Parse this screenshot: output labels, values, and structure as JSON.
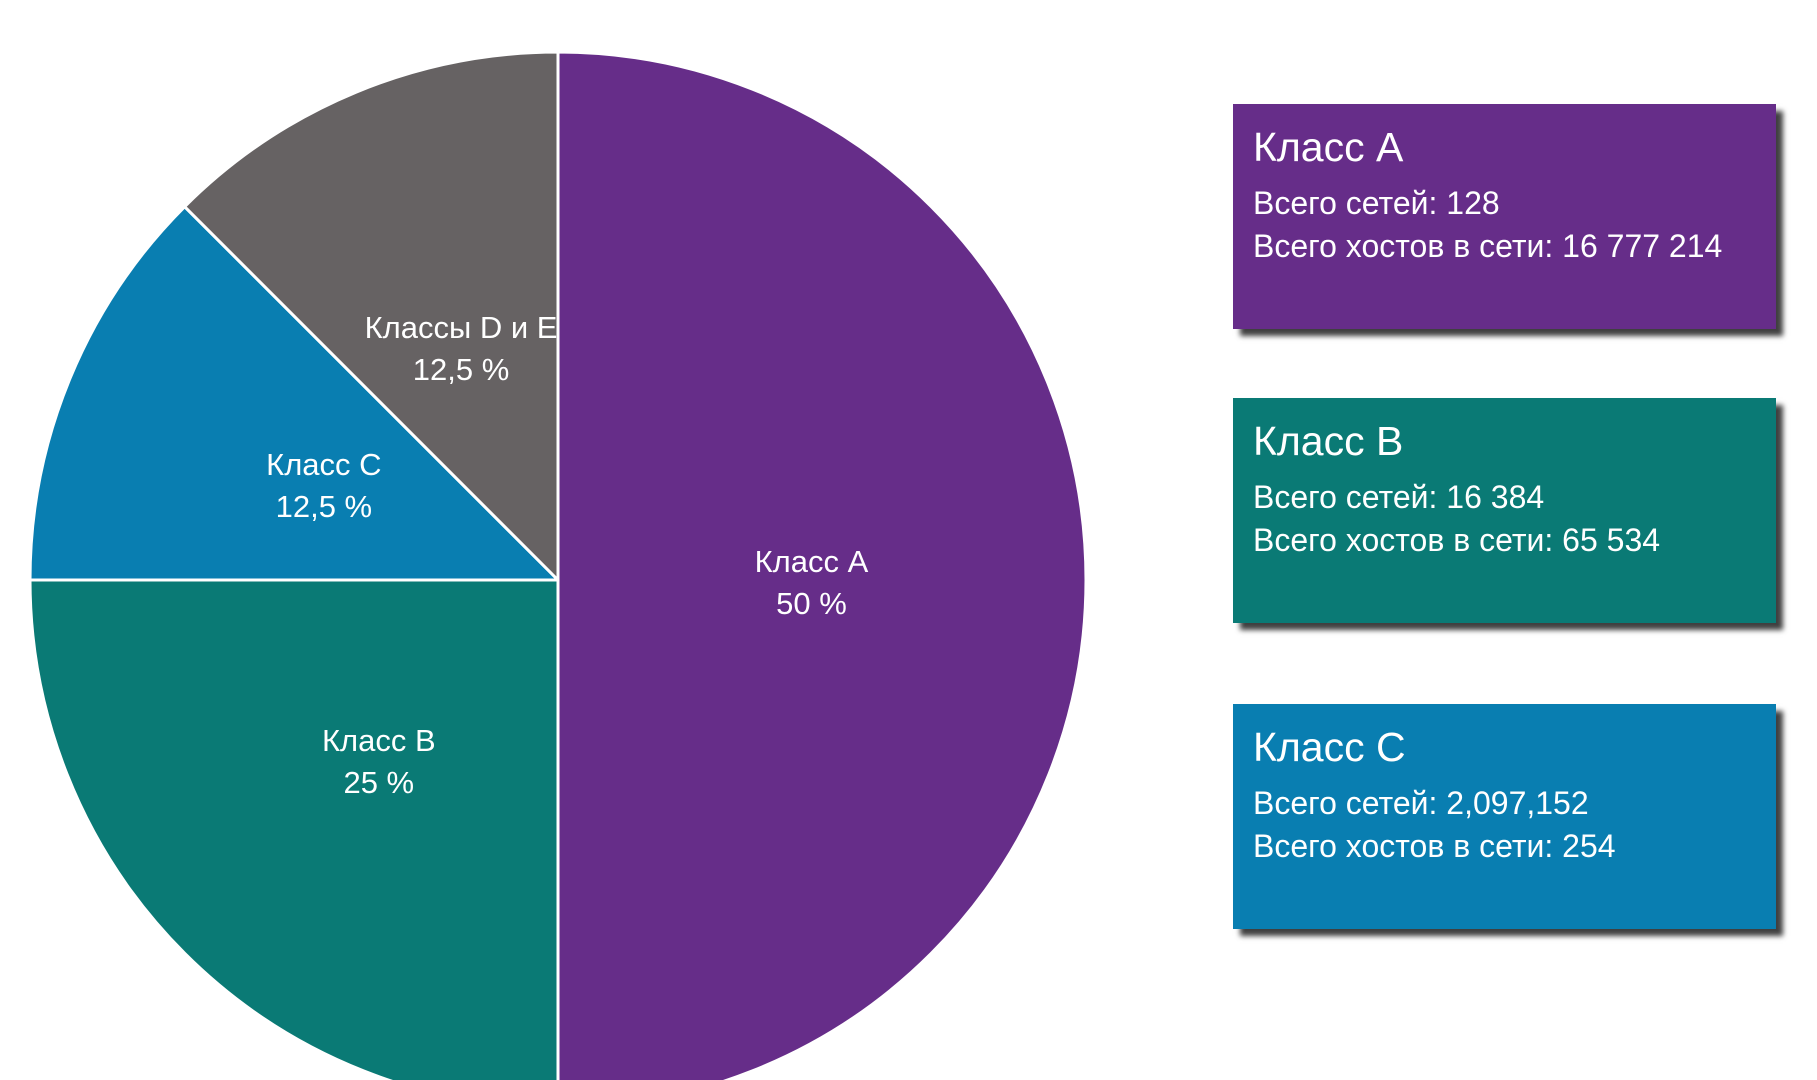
{
  "chart_data": {
    "type": "pie",
    "slices": [
      {
        "name": "Класс A",
        "label": "Класс A",
        "value_label": "50 %",
        "value": 50,
        "color": "#662D89"
      },
      {
        "name": "Класс B",
        "label": "Класс B",
        "value_label": "25 %",
        "value": 25,
        "color": "#0A7A75"
      },
      {
        "name": "Класс C",
        "label": "Класс C",
        "value_label": "12,5 %",
        "value": 12.5,
        "color": "#097EB1"
      },
      {
        "name": "Классы D и E",
        "label": "Классы D и E",
        "value_label": "12,5 %",
        "value": 12.5,
        "color": "#666263"
      }
    ]
  },
  "cards": [
    {
      "title": "Класс A",
      "networks": "Всего сетей: 128",
      "hosts": "Всего хостов в сети: 16 777 214",
      "color": "#662D89"
    },
    {
      "title": "Класс B",
      "networks": "Всего сетей: 16 384",
      "hosts": "Всего хостов в сети: 65 534",
      "color": "#0A7A75"
    },
    {
      "title": "Класс C",
      "networks": "Всего сетей: 2,097,152",
      "hosts": "Всего хостов в сети: 254",
      "color": "#097EB1"
    }
  ]
}
